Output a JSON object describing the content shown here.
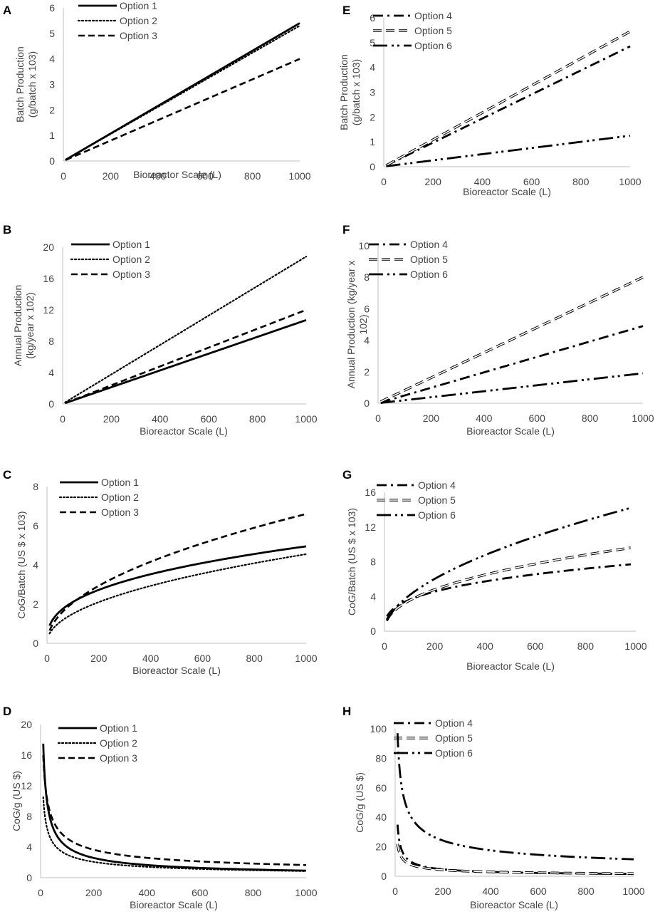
{
  "colors": {
    "line": "#000000",
    "axis": "#bfbfbf",
    "text": "#444444",
    "hollow_fill": "#ffffff"
  },
  "chart_data": [
    {
      "id": "A",
      "type": "line",
      "xlabel": "Bioreactor Scale (L)",
      "ylabel": "Batch Production (g/batch x 103)",
      "xticks": [
        "0",
        "200",
        "400",
        "600",
        "800",
        "1000"
      ],
      "yticks": [
        "0",
        "1",
        "2",
        "3",
        "4",
        "5",
        "6"
      ],
      "xlim": [
        0,
        1000
      ],
      "ylim": [
        0,
        6
      ],
      "series": [
        {
          "name": "Option 1",
          "style": "solid",
          "formula": "linear",
          "xmin": 10,
          "xmax": 1000,
          "y_at_min": 0.05,
          "y_at_max": 5.4
        },
        {
          "name": "Option 2",
          "style": "dotted",
          "formula": "linear",
          "xmin": 10,
          "xmax": 1000,
          "y_at_min": 0.05,
          "y_at_max": 5.3
        },
        {
          "name": "Option 3",
          "style": "dashed",
          "formula": "linear",
          "xmin": 10,
          "xmax": 1000,
          "y_at_min": 0.04,
          "y_at_max": 4.0
        }
      ]
    },
    {
      "id": "E",
      "type": "line",
      "xlabel": "Bioreactor Scale (L)",
      "ylabel": "Batch Production (g/batch x 103)",
      "xticks": [
        "0",
        "200",
        "400",
        "600",
        "800",
        "1000"
      ],
      "yticks": [
        "0",
        "1",
        "2",
        "3",
        "4",
        "5",
        "6"
      ],
      "xlim": [
        0,
        1000
      ],
      "ylim": [
        0,
        6
      ],
      "series": [
        {
          "name": "Option 4",
          "style": "dashdot",
          "formula": "linear",
          "xmin": 10,
          "xmax": 1000,
          "y_at_min": 0.05,
          "y_at_max": 4.85
        },
        {
          "name": "Option 5",
          "style": "hollowdash",
          "formula": "linear",
          "xmin": 10,
          "xmax": 1000,
          "y_at_min": 0.05,
          "y_at_max": 5.45
        },
        {
          "name": "Option 6",
          "style": "dashdotdot",
          "formula": "linear",
          "xmin": 10,
          "xmax": 1000,
          "y_at_min": 0.02,
          "y_at_max": 1.25
        }
      ]
    },
    {
      "id": "B",
      "type": "line",
      "xlabel": "Bioreactor Scale (L)",
      "ylabel": "Annual Production (kg/year x 102)",
      "xticks": [
        "0",
        "200",
        "400",
        "600",
        "800",
        "1000"
      ],
      "yticks": [
        "0",
        "4",
        "8",
        "12",
        "16",
        "20"
      ],
      "xlim": [
        0,
        1000
      ],
      "ylim": [
        0,
        20
      ],
      "series": [
        {
          "name": "Option 1",
          "style": "solid",
          "formula": "linear",
          "xmin": 10,
          "xmax": 1000,
          "y_at_min": 0.1,
          "y_at_max": 10.7
        },
        {
          "name": "Option 2",
          "style": "dotted",
          "formula": "linear",
          "xmin": 10,
          "xmax": 1000,
          "y_at_min": 0.2,
          "y_at_max": 18.8
        },
        {
          "name": "Option 3",
          "style": "dashed",
          "formula": "linear",
          "xmin": 10,
          "xmax": 1000,
          "y_at_min": 0.1,
          "y_at_max": 12.0
        }
      ]
    },
    {
      "id": "F",
      "type": "line",
      "xlabel": "Bioreactor Scale (L)",
      "ylabel": "Annual Production (kg/year x 102)",
      "xticks": [
        "0",
        "200",
        "400",
        "600",
        "800",
        "1000"
      ],
      "yticks": [
        "0",
        "2",
        "4",
        "6",
        "8",
        "10"
      ],
      "xlim": [
        0,
        1000
      ],
      "ylim": [
        0,
        10
      ],
      "series": [
        {
          "name": "Option 4",
          "style": "dashdot",
          "formula": "linear",
          "xmin": 10,
          "xmax": 1000,
          "y_at_min": 0.05,
          "y_at_max": 4.9
        },
        {
          "name": "Option 5",
          "style": "hollowdash",
          "formula": "linear",
          "xmin": 10,
          "xmax": 1000,
          "y_at_min": 0.1,
          "y_at_max": 8.0
        },
        {
          "name": "Option 6",
          "style": "dashdotdot",
          "formula": "linear",
          "xmin": 10,
          "xmax": 1000,
          "y_at_min": 0.02,
          "y_at_max": 1.9
        }
      ]
    },
    {
      "id": "C",
      "type": "line",
      "xlabel": "Bioreactor Scale (L)",
      "ylabel": "CoG/Batch (US $ x 103)",
      "xticks": [
        "0",
        "200",
        "400",
        "600",
        "800",
        "1000"
      ],
      "yticks": [
        "0",
        "2",
        "4",
        "6",
        "8"
      ],
      "xlim": [
        0,
        1000
      ],
      "ylim": [
        0,
        8
      ],
      "series": [
        {
          "name": "Option 1",
          "style": "solid",
          "formula": "power",
          "xmin": 10,
          "xmax": 1000,
          "y_at_min": 0.9,
          "y_at_max": 4.95
        },
        {
          "name": "Option 2",
          "style": "dotted",
          "formula": "power",
          "xmin": 10,
          "xmax": 1000,
          "y_at_min": 0.5,
          "y_at_max": 4.55
        },
        {
          "name": "Option 3",
          "style": "dashed",
          "formula": "power",
          "xmin": 10,
          "xmax": 1000,
          "y_at_min": 0.65,
          "y_at_max": 6.6
        }
      ]
    },
    {
      "id": "G",
      "type": "line",
      "xlabel": "Bioreactor Scale (L)",
      "ylabel": "CoG/Batch (US $ x 103)",
      "xticks": [
        "0",
        "200",
        "400",
        "600",
        "800",
        "1000"
      ],
      "yticks": [
        "0",
        "4",
        "8",
        "12",
        "16"
      ],
      "xlim": [
        0,
        1000
      ],
      "ylim": [
        0,
        16
      ],
      "series": [
        {
          "name": "Option 4",
          "style": "dashdot",
          "formula": "power",
          "xmin": 10,
          "xmax": 980,
          "y_at_min": 1.7,
          "y_at_max": 7.7
        },
        {
          "name": "Option 5",
          "style": "hollowdash",
          "formula": "power",
          "xmin": 10,
          "xmax": 980,
          "y_at_min": 1.3,
          "y_at_max": 9.6
        },
        {
          "name": "Option 6",
          "style": "dashdotdot",
          "formula": "power",
          "xmin": 10,
          "xmax": 980,
          "y_at_min": 1.2,
          "y_at_max": 14.2
        }
      ]
    },
    {
      "id": "D",
      "type": "line",
      "xlabel": "Bioreactor Scale (L)",
      "ylabel": "CoG/g (US $)",
      "xticks": [
        "0",
        "200",
        "400",
        "600",
        "800",
        "1000"
      ],
      "yticks": [
        "0",
        "4",
        "8",
        "12",
        "16",
        "20"
      ],
      "xlim": [
        0,
        1000
      ],
      "ylim": [
        0,
        20
      ],
      "series": [
        {
          "name": "Option 1",
          "style": "solid",
          "formula": "power",
          "xmin": 10,
          "xmax": 1000,
          "y_at_min": 17.5,
          "y_at_max": 0.92
        },
        {
          "name": "Option 2",
          "style": "dotted",
          "formula": "power",
          "xmin": 10,
          "xmax": 1000,
          "y_at_min": 10.5,
          "y_at_max": 0.86
        },
        {
          "name": "Option 3",
          "style": "dashed",
          "formula": "power",
          "xmin": 10,
          "xmax": 1000,
          "y_at_min": 16.0,
          "y_at_max": 1.65
        }
      ]
    },
    {
      "id": "H",
      "type": "line",
      "xlabel": "Bioreactor Scale (L)",
      "ylabel": "CoG/g (US $)",
      "xticks": [
        "0",
        "200",
        "400",
        "600",
        "800",
        "1000"
      ],
      "yticks": [
        "0",
        "20",
        "40",
        "60",
        "80",
        "100"
      ],
      "xlim": [
        0,
        1000
      ],
      "ylim": [
        0,
        100
      ],
      "series": [
        {
          "name": "Option 4",
          "style": "dashdot",
          "formula": "power",
          "xmin": 10,
          "xmax": 1000,
          "y_at_min": 35.0,
          "y_at_max": 1.6
        },
        {
          "name": "Option 5",
          "style": "hollowdash",
          "formula": "power",
          "xmin": 10,
          "xmax": 1000,
          "y_at_min": 22.0,
          "y_at_max": 1.8
        },
        {
          "name": "Option 6",
          "style": "dashdotdot",
          "formula": "power",
          "xmin": 10,
          "xmax": 1000,
          "y_at_min": 97.0,
          "y_at_max": 11.5
        }
      ]
    }
  ]
}
